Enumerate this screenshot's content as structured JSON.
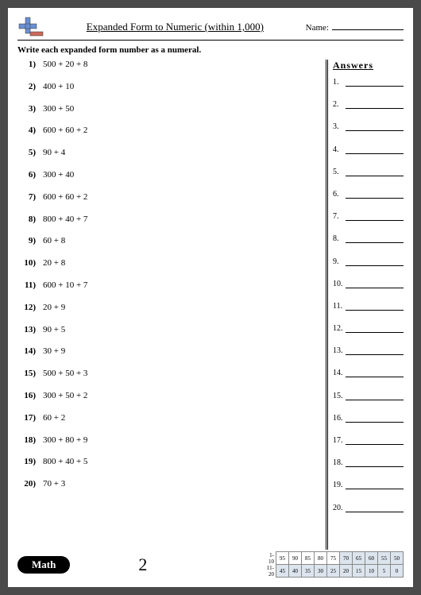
{
  "header": {
    "title": "Expanded Form to Numeric (within 1,000)",
    "name_label": "Name:"
  },
  "instruction": "Write each expanded form number as a numeral.",
  "answers_title": "Answers",
  "problems": [
    {
      "n": "1)",
      "t": "500 + 20 + 8"
    },
    {
      "n": "2)",
      "t": "400 + 10"
    },
    {
      "n": "3)",
      "t": "300 + 50"
    },
    {
      "n": "4)",
      "t": "600 + 60 + 2"
    },
    {
      "n": "5)",
      "t": "90 + 4"
    },
    {
      "n": "6)",
      "t": "300 + 40"
    },
    {
      "n": "7)",
      "t": "600 + 60 + 2"
    },
    {
      "n": "8)",
      "t": "800 + 40 + 7"
    },
    {
      "n": "9)",
      "t": "60 + 8"
    },
    {
      "n": "10)",
      "t": "20 + 8"
    },
    {
      "n": "11)",
      "t": "600 + 10 + 7"
    },
    {
      "n": "12)",
      "t": "20 + 9"
    },
    {
      "n": "13)",
      "t": "90 + 5"
    },
    {
      "n": "14)",
      "t": "30 + 9"
    },
    {
      "n": "15)",
      "t": "500 + 50 + 3"
    },
    {
      "n": "16)",
      "t": "300 + 50 + 2"
    },
    {
      "n": "17)",
      "t": "60 + 2"
    },
    {
      "n": "18)",
      "t": "300 + 80 + 9"
    },
    {
      "n": "19)",
      "t": "800 + 40 + 5"
    },
    {
      "n": "20)",
      "t": "70 + 3"
    }
  ],
  "answers": [
    {
      "n": "1."
    },
    {
      "n": "2."
    },
    {
      "n": "3."
    },
    {
      "n": "4."
    },
    {
      "n": "5."
    },
    {
      "n": "6."
    },
    {
      "n": "7."
    },
    {
      "n": "8."
    },
    {
      "n": "9."
    },
    {
      "n": "10."
    },
    {
      "n": "11."
    },
    {
      "n": "12."
    },
    {
      "n": "13."
    },
    {
      "n": "14."
    },
    {
      "n": "15."
    },
    {
      "n": "16."
    },
    {
      "n": "17."
    },
    {
      "n": "18."
    },
    {
      "n": "19."
    },
    {
      "n": "20."
    }
  ],
  "footer": {
    "badge": "Math",
    "page": "2",
    "row1_label": "1-10",
    "row2_label": "11-20",
    "row1": [
      "95",
      "90",
      "85",
      "80",
      "75",
      "70",
      "65",
      "60",
      "55",
      "50"
    ],
    "row2": [
      "45",
      "40",
      "35",
      "30",
      "25",
      "20",
      "15",
      "10",
      "5",
      "0"
    ]
  }
}
